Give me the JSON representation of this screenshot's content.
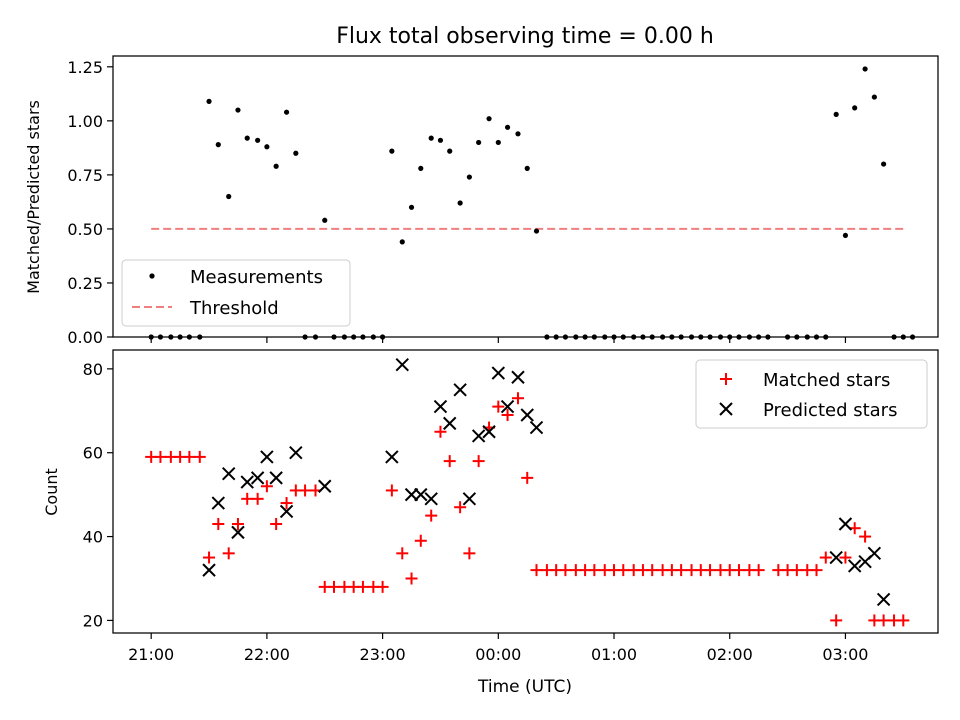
{
  "figure": {
    "title": "Flux total observing time = 0.00 h",
    "xlabel": "Time (UTC)",
    "xtick_labels": [
      "21:00",
      "22:00",
      "23:00",
      "00:00",
      "01:00",
      "02:00",
      "03:00"
    ]
  },
  "colors": {
    "measurements": "#000000",
    "threshold": "#f08080",
    "matched": "#ff0000",
    "predicted": "#000000"
  },
  "chart_data": [
    {
      "type": "scatter",
      "ylabel": "Matched/Predicted stars",
      "ylim": [
        0,
        1.3
      ],
      "yticks": [
        0,
        0.25,
        0.5,
        0.75,
        1.0,
        1.25
      ],
      "ytick_labels": [
        "0.00",
        "0.25",
        "0.50",
        "0.75",
        "1.00",
        "1.25"
      ],
      "x_unit": "hours since 21:00 UTC",
      "xlim": [
        -0.33,
        6.8
      ],
      "legend_position": "lower-left",
      "legend": [
        "Measurements",
        "Threshold"
      ],
      "threshold": {
        "name": "Threshold",
        "value": 0.5,
        "x_range": [
          0,
          6.5
        ]
      },
      "series": [
        {
          "name": "Measurements",
          "points": [
            [
              0.0,
              0
            ],
            [
              0.08,
              0
            ],
            [
              0.17,
              0
            ],
            [
              0.25,
              0
            ],
            [
              0.33,
              0
            ],
            [
              0.42,
              0
            ],
            [
              0.5,
              1.09
            ],
            [
              0.58,
              0.89
            ],
            [
              0.67,
              0.65
            ],
            [
              0.75,
              1.05
            ],
            [
              0.83,
              0.92
            ],
            [
              0.92,
              0.91
            ],
            [
              1.0,
              0.88
            ],
            [
              1.08,
              0.79
            ],
            [
              1.17,
              1.04
            ],
            [
              1.25,
              0.85
            ],
            [
              1.33,
              0
            ],
            [
              1.42,
              0
            ],
            [
              1.5,
              0.54
            ],
            [
              1.58,
              0
            ],
            [
              1.67,
              0
            ],
            [
              1.75,
              0
            ],
            [
              1.83,
              0
            ],
            [
              1.92,
              0
            ],
            [
              2.0,
              0
            ],
            [
              2.08,
              0.86
            ],
            [
              2.17,
              0.44
            ],
            [
              2.25,
              0.6
            ],
            [
              2.33,
              0.78
            ],
            [
              2.42,
              0.92
            ],
            [
              2.5,
              0.91
            ],
            [
              2.58,
              0.86
            ],
            [
              2.67,
              0.62
            ],
            [
              2.75,
              0.74
            ],
            [
              2.83,
              0.9
            ],
            [
              2.92,
              1.01
            ],
            [
              3.0,
              0.9
            ],
            [
              3.08,
              0.97
            ],
            [
              3.17,
              0.94
            ],
            [
              3.25,
              0.78
            ],
            [
              3.33,
              0.49
            ],
            [
              3.42,
              0
            ],
            [
              3.5,
              0
            ],
            [
              3.58,
              0
            ],
            [
              3.67,
              0
            ],
            [
              3.75,
              0
            ],
            [
              3.83,
              0
            ],
            [
              3.92,
              0
            ],
            [
              4.0,
              0
            ],
            [
              4.08,
              0
            ],
            [
              4.17,
              0
            ],
            [
              4.25,
              0
            ],
            [
              4.33,
              0
            ],
            [
              4.42,
              0
            ],
            [
              4.5,
              0
            ],
            [
              4.58,
              0
            ],
            [
              4.67,
              0
            ],
            [
              4.75,
              0
            ],
            [
              4.83,
              0
            ],
            [
              4.92,
              0
            ],
            [
              5.0,
              0
            ],
            [
              5.08,
              0
            ],
            [
              5.17,
              0
            ],
            [
              5.25,
              0
            ],
            [
              5.33,
              0
            ],
            [
              5.5,
              0
            ],
            [
              5.58,
              0
            ],
            [
              5.67,
              0
            ],
            [
              5.75,
              0
            ],
            [
              5.83,
              0
            ],
            [
              5.92,
              1.03
            ],
            [
              6.0,
              0.47
            ],
            [
              6.08,
              1.06
            ],
            [
              6.17,
              1.24
            ],
            [
              6.25,
              1.11
            ],
            [
              6.33,
              0.8
            ],
            [
              6.42,
              0
            ],
            [
              6.5,
              0
            ],
            [
              6.58,
              0
            ]
          ]
        }
      ]
    },
    {
      "type": "scatter",
      "ylabel": "Count",
      "ylim": [
        17,
        84.5
      ],
      "yticks": [
        20,
        40,
        60,
        80
      ],
      "ytick_labels": [
        "20",
        "40",
        "60",
        "80"
      ],
      "x_unit": "hours since 21:00 UTC",
      "xlim": [
        -0.33,
        6.8
      ],
      "legend_position": "upper-right",
      "legend": [
        "Matched stars",
        "Predicted stars"
      ],
      "series": [
        {
          "name": "Matched stars",
          "marker": "plus",
          "points": [
            [
              0.0,
              59
            ],
            [
              0.08,
              59
            ],
            [
              0.17,
              59
            ],
            [
              0.25,
              59
            ],
            [
              0.33,
              59
            ],
            [
              0.42,
              59
            ],
            [
              0.5,
              35
            ],
            [
              0.58,
              43
            ],
            [
              0.67,
              36
            ],
            [
              0.75,
              43
            ],
            [
              0.83,
              49
            ],
            [
              0.92,
              49
            ],
            [
              1.0,
              52
            ],
            [
              1.08,
              43
            ],
            [
              1.17,
              48
            ],
            [
              1.25,
              51
            ],
            [
              1.33,
              51
            ],
            [
              1.42,
              51
            ],
            [
              1.5,
              28
            ],
            [
              1.58,
              28
            ],
            [
              1.67,
              28
            ],
            [
              1.75,
              28
            ],
            [
              1.83,
              28
            ],
            [
              1.92,
              28
            ],
            [
              2.0,
              28
            ],
            [
              2.08,
              51
            ],
            [
              2.17,
              36
            ],
            [
              2.25,
              30
            ],
            [
              2.33,
              39
            ],
            [
              2.42,
              45
            ],
            [
              2.5,
              65
            ],
            [
              2.58,
              58
            ],
            [
              2.67,
              47
            ],
            [
              2.75,
              36
            ],
            [
              2.83,
              58
            ],
            [
              2.92,
              66
            ],
            [
              3.0,
              71
            ],
            [
              3.08,
              69
            ],
            [
              3.17,
              73
            ],
            [
              3.25,
              54
            ],
            [
              3.33,
              32
            ],
            [
              3.42,
              32
            ],
            [
              3.5,
              32
            ],
            [
              3.58,
              32
            ],
            [
              3.67,
              32
            ],
            [
              3.75,
              32
            ],
            [
              3.83,
              32
            ],
            [
              3.92,
              32
            ],
            [
              4.0,
              32
            ],
            [
              4.08,
              32
            ],
            [
              4.17,
              32
            ],
            [
              4.25,
              32
            ],
            [
              4.33,
              32
            ],
            [
              4.42,
              32
            ],
            [
              4.5,
              32
            ],
            [
              4.58,
              32
            ],
            [
              4.67,
              32
            ],
            [
              4.75,
              32
            ],
            [
              4.83,
              32
            ],
            [
              4.92,
              32
            ],
            [
              5.0,
              32
            ],
            [
              5.08,
              32
            ],
            [
              5.17,
              32
            ],
            [
              5.25,
              32
            ],
            [
              5.42,
              32
            ],
            [
              5.5,
              32
            ],
            [
              5.58,
              32
            ],
            [
              5.67,
              32
            ],
            [
              5.75,
              32
            ],
            [
              5.83,
              35
            ],
            [
              5.92,
              20
            ],
            [
              6.0,
              35
            ],
            [
              6.08,
              42
            ],
            [
              6.17,
              40
            ],
            [
              6.25,
              20
            ],
            [
              6.33,
              20
            ],
            [
              6.42,
              20
            ],
            [
              6.5,
              20
            ]
          ]
        },
        {
          "name": "Predicted stars",
          "marker": "x",
          "points": [
            [
              0.5,
              32
            ],
            [
              0.58,
              48
            ],
            [
              0.67,
              55
            ],
            [
              0.75,
              41
            ],
            [
              0.83,
              53
            ],
            [
              0.92,
              54
            ],
            [
              1.0,
              59
            ],
            [
              1.08,
              54
            ],
            [
              1.17,
              46
            ],
            [
              1.25,
              60
            ],
            [
              1.5,
              52
            ],
            [
              2.08,
              59
            ],
            [
              2.17,
              81
            ],
            [
              2.25,
              50
            ],
            [
              2.33,
              50
            ],
            [
              2.42,
              49
            ],
            [
              2.5,
              71
            ],
            [
              2.58,
              67
            ],
            [
              2.67,
              75
            ],
            [
              2.75,
              49
            ],
            [
              2.83,
              64
            ],
            [
              2.92,
              65
            ],
            [
              3.0,
              79
            ],
            [
              3.08,
              71
            ],
            [
              3.17,
              78
            ],
            [
              3.25,
              69
            ],
            [
              3.33,
              66
            ],
            [
              5.92,
              35
            ],
            [
              6.0,
              43
            ],
            [
              6.08,
              33
            ],
            [
              6.17,
              34
            ],
            [
              6.25,
              36
            ],
            [
              6.33,
              25
            ]
          ]
        }
      ]
    }
  ]
}
